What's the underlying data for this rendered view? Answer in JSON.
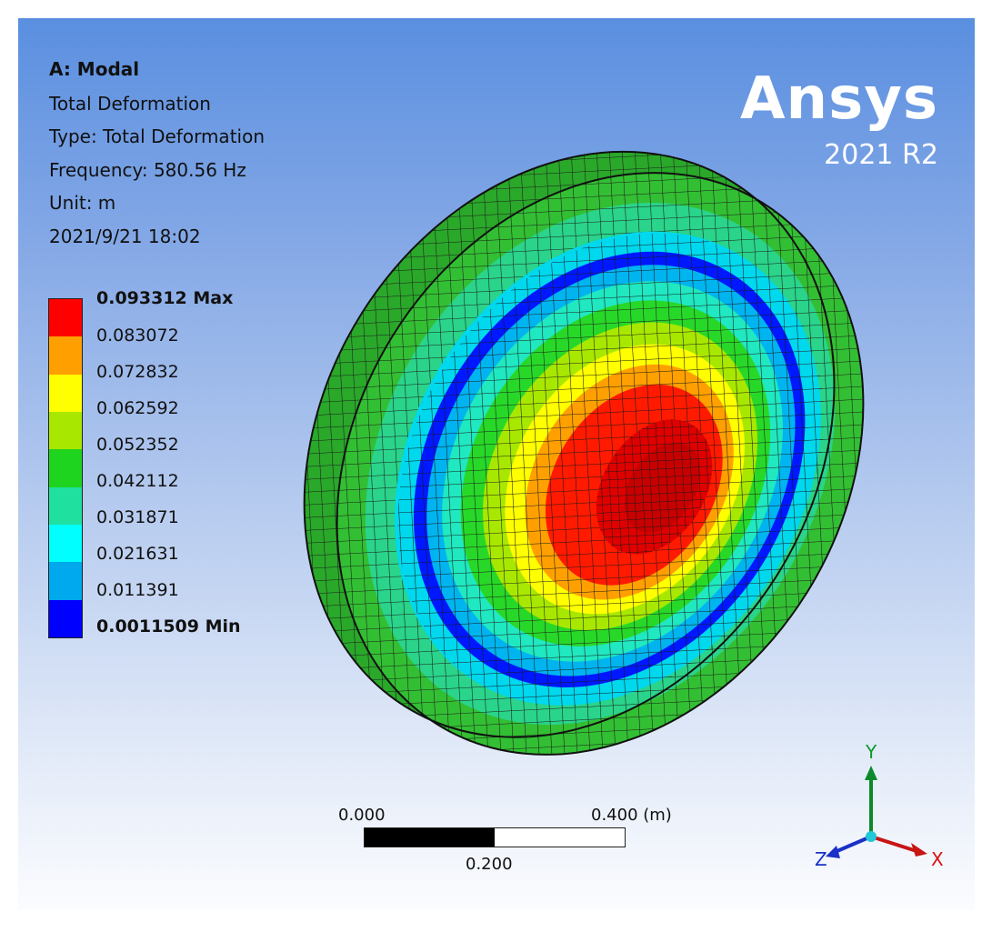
{
  "info": {
    "title": "A: Modal",
    "lines": [
      "Total Deformation",
      "Type: Total Deformation",
      "Frequency: 580.56 Hz",
      "Unit: m",
      "2021/9/21 18:02"
    ]
  },
  "logo": {
    "name": "Ansys",
    "version": "2021 R2"
  },
  "legend": {
    "max_label": "0.093312 Max",
    "min_label": "0.0011509 Min",
    "values": [
      "0.083072",
      "0.072832",
      "0.062592",
      "0.052352",
      "0.042112",
      "0.031871",
      "0.021631",
      "0.011391"
    ],
    "colors": [
      "#ff0000",
      "#ffa000",
      "#ffff00",
      "#a8e800",
      "#1ed41e",
      "#20e0a0",
      "#00ffff",
      "#00a8ee",
      "#0000ff"
    ]
  },
  "scale": {
    "start": "0.000",
    "end": "0.400 (m)",
    "mid": "0.200"
  },
  "triad": {
    "x": "X",
    "y": "Y",
    "z": "Z"
  }
}
